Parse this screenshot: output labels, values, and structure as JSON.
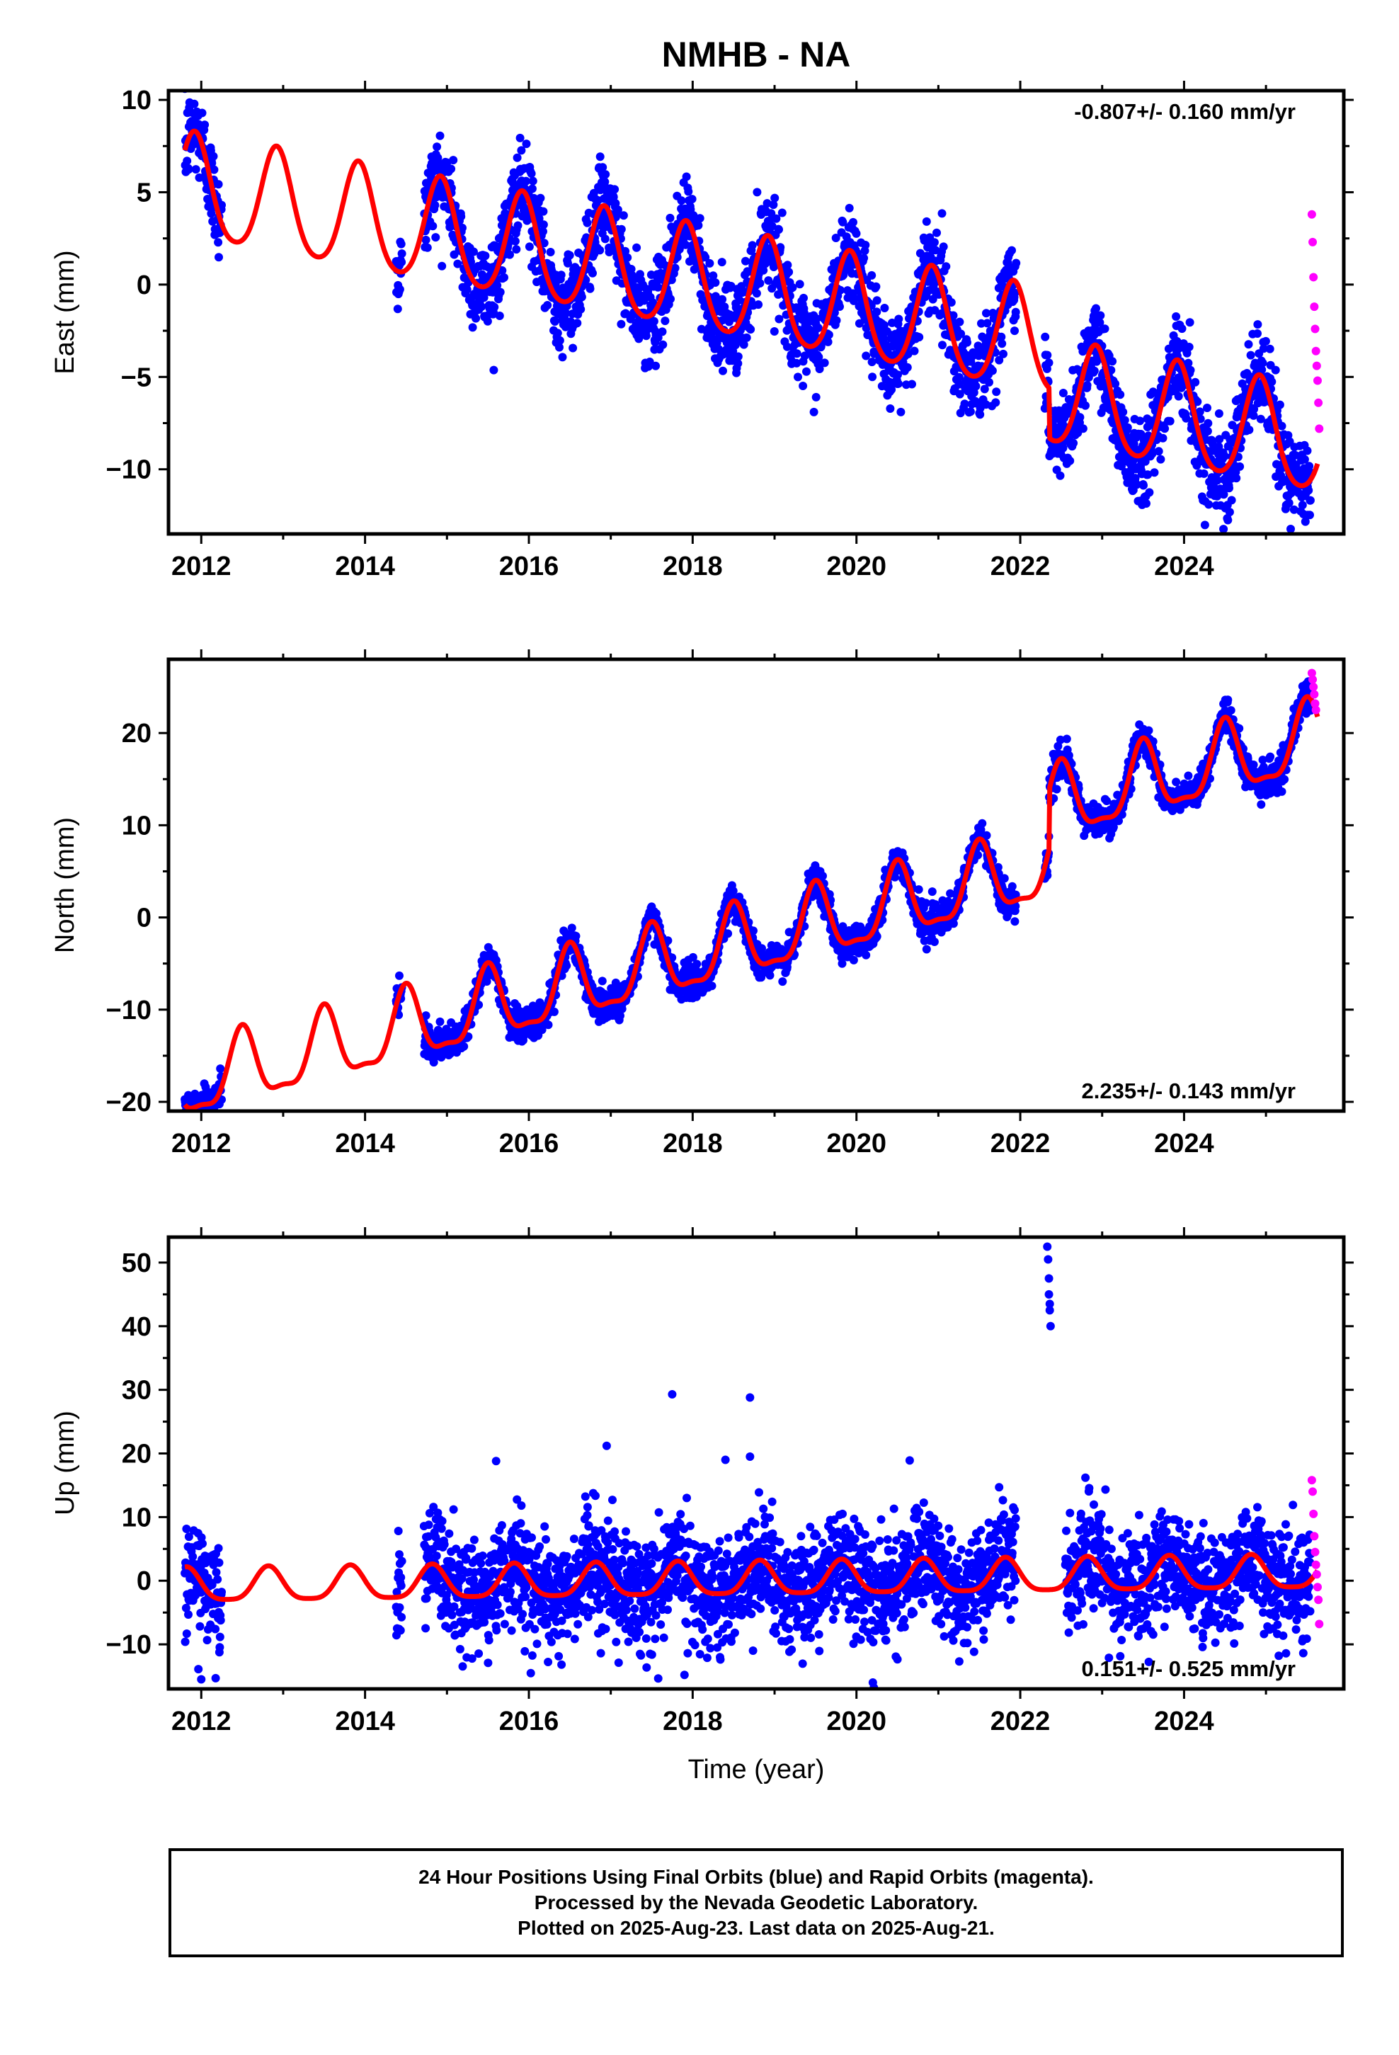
{
  "title": "NMHB - NA",
  "colors": {
    "final_orbits": "#0000ff",
    "rapid_orbits": "#ff00ff",
    "model_fit": "#ff0000",
    "axes": "#000000"
  },
  "footer": {
    "line1": "24 Hour Positions Using Final Orbits (blue) and Rapid Orbits (magenta).",
    "line2": "Processed by the Nevada Geodetic Laboratory.",
    "line3": "Plotted on 2025-Aug-23. Last data on 2025-Aug-21."
  },
  "chart_data": [
    {
      "type": "scatter",
      "component": "East",
      "ylabel": "East (mm)",
      "xlabel": "",
      "rate_label": "-0.807+/- 0.160 mm/yr",
      "rate_position": "top-right",
      "xlim": [
        2011.6,
        2025.95
      ],
      "ylim": [
        -13.5,
        10.5
      ],
      "xticks": [
        2012,
        2014,
        2016,
        2018,
        2020,
        2022,
        2024
      ],
      "xtick_labels": [
        "2012",
        "2014",
        "2016",
        "2018",
        "2020",
        "2022",
        "2024"
      ],
      "yticks": [
        -10,
        -5,
        0,
        5,
        10
      ],
      "ytick_labels": [
        "−10",
        "−5",
        "0",
        "5",
        "10"
      ],
      "data_segments": [
        {
          "start": 2011.8,
          "end": 2012.25
        },
        {
          "start": 2014.38,
          "end": 2014.45
        },
        {
          "start": 2014.72,
          "end": 2021.95
        },
        {
          "start": 2022.3,
          "end": 2025.55
        }
      ],
      "model": {
        "ref_year": 2018.5,
        "intercept": -0.2,
        "rate": -0.807,
        "annual_amplitude": 2.8,
        "annual_phase_year": 0.92,
        "semiannual_amplitude": 0.4,
        "offsets": [
          {
            "year": 2022.35,
            "size": -2.7
          }
        ]
      },
      "scatter_sigma": 1.2,
      "rapid_orbit_points": [
        {
          "year": 2025.56,
          "value": 3.8
        },
        {
          "year": 2025.57,
          "value": 2.3
        },
        {
          "year": 2025.58,
          "value": 0.4
        },
        {
          "year": 2025.59,
          "value": -1.2
        },
        {
          "year": 2025.6,
          "value": -2.4
        },
        {
          "year": 2025.61,
          "value": -3.6
        },
        {
          "year": 2025.62,
          "value": -4.4
        },
        {
          "year": 2025.63,
          "value": -5.2
        },
        {
          "year": 2025.64,
          "value": -6.4
        },
        {
          "year": 2025.65,
          "value": -7.8
        }
      ]
    },
    {
      "type": "scatter",
      "component": "North",
      "ylabel": "North (mm)",
      "xlabel": "",
      "rate_label": "2.235+/- 0.143 mm/yr",
      "rate_position": "bottom-right",
      "xlim": [
        2011.6,
        2025.95
      ],
      "ylim": [
        -21,
        28
      ],
      "xticks": [
        2012,
        2014,
        2016,
        2018,
        2020,
        2022,
        2024
      ],
      "xtick_labels": [
        "2012",
        "2014",
        "2016",
        "2018",
        "2020",
        "2022",
        "2024"
      ],
      "yticks": [
        -20,
        -10,
        0,
        10,
        20
      ],
      "ytick_labels": [
        "−20",
        "−10",
        "0",
        "10",
        "20"
      ],
      "data_segments": [
        {
          "start": 2011.8,
          "end": 2012.25
        },
        {
          "start": 2014.38,
          "end": 2014.45
        },
        {
          "start": 2014.72,
          "end": 2021.95
        },
        {
          "start": 2022.3,
          "end": 2025.55
        }
      ],
      "model": {
        "ref_year": 2018.5,
        "intercept": -3.2,
        "rate": 2.235,
        "annual_amplitude": 3.8,
        "annual_phase_year": 0.5,
        "semiannual_amplitude": 1.2,
        "offsets": [
          {
            "year": 2022.35,
            "size": 6.5
          }
        ]
      },
      "scatter_sigma": 0.9,
      "rapid_orbit_points": [
        {
          "year": 2025.56,
          "value": 26.5
        },
        {
          "year": 2025.57,
          "value": 25.8
        },
        {
          "year": 2025.58,
          "value": 25.0
        },
        {
          "year": 2025.59,
          "value": 24.2
        },
        {
          "year": 2025.6,
          "value": 23.2
        },
        {
          "year": 2025.61,
          "value": 22.5
        }
      ]
    },
    {
      "type": "scatter",
      "component": "Up",
      "ylabel": "Up (mm)",
      "xlabel": "Time (year)",
      "rate_label": "0.151+/- 0.525 mm/yr",
      "rate_position": "bottom-right",
      "xlim": [
        2011.6,
        2025.95
      ],
      "ylim": [
        -17,
        54
      ],
      "xticks": [
        2012,
        2014,
        2016,
        2018,
        2020,
        2022,
        2024
      ],
      "xtick_labels": [
        "2012",
        "2014",
        "2016",
        "2018",
        "2020",
        "2022",
        "2024"
      ],
      "yticks": [
        -10,
        0,
        10,
        20,
        30,
        40,
        50
      ],
      "ytick_labels": [
        "−10",
        "0",
        "10",
        "20",
        "30",
        "40",
        "50"
      ],
      "data_segments": [
        {
          "start": 2011.8,
          "end": 2012.25
        },
        {
          "start": 2014.38,
          "end": 2014.45
        },
        {
          "start": 2014.72,
          "end": 2021.95
        },
        {
          "start": 2022.55,
          "end": 2025.55
        }
      ],
      "model": {
        "ref_year": 2018.5,
        "intercept": 0.0,
        "rate": 0.151,
        "annual_amplitude": 2.6,
        "annual_phase_year": 0.82,
        "semiannual_amplitude": 0.6,
        "offsets": []
      },
      "scatter_sigma": 4.2,
      "outliers": [
        {
          "year": 2022.33,
          "value": 52.5
        },
        {
          "year": 2022.34,
          "value": 50.5
        },
        {
          "year": 2022.35,
          "value": 47.5
        },
        {
          "year": 2022.35,
          "value": 45.0
        },
        {
          "year": 2022.36,
          "value": 43.5
        },
        {
          "year": 2022.36,
          "value": 42.5
        },
        {
          "year": 2022.37,
          "value": 40.0
        },
        {
          "year": 2017.75,
          "value": 29.3
        },
        {
          "year": 2018.7,
          "value": 28.8
        },
        {
          "year": 2016.95,
          "value": 21.2
        },
        {
          "year": 2018.7,
          "value": 19.5
        },
        {
          "year": 2018.4,
          "value": 19.0
        },
        {
          "year": 2020.65,
          "value": 18.9
        },
        {
          "year": 2015.6,
          "value": 18.8
        },
        {
          "year": 2020.2,
          "value": -16.0
        },
        {
          "year": 2012.0,
          "value": -15.5
        },
        {
          "year": 2017.9,
          "value": -14.8
        }
      ],
      "rapid_orbit_points": [
        {
          "year": 2025.56,
          "value": 15.8
        },
        {
          "year": 2025.57,
          "value": 14.0
        },
        {
          "year": 2025.58,
          "value": 10.5
        },
        {
          "year": 2025.59,
          "value": 7.0
        },
        {
          "year": 2025.6,
          "value": 4.5
        },
        {
          "year": 2025.61,
          "value": 2.5
        },
        {
          "year": 2025.62,
          "value": 1.0
        },
        {
          "year": 2025.63,
          "value": -1.0
        },
        {
          "year": 2025.64,
          "value": -3.0
        },
        {
          "year": 2025.65,
          "value": -6.8
        }
      ]
    }
  ]
}
